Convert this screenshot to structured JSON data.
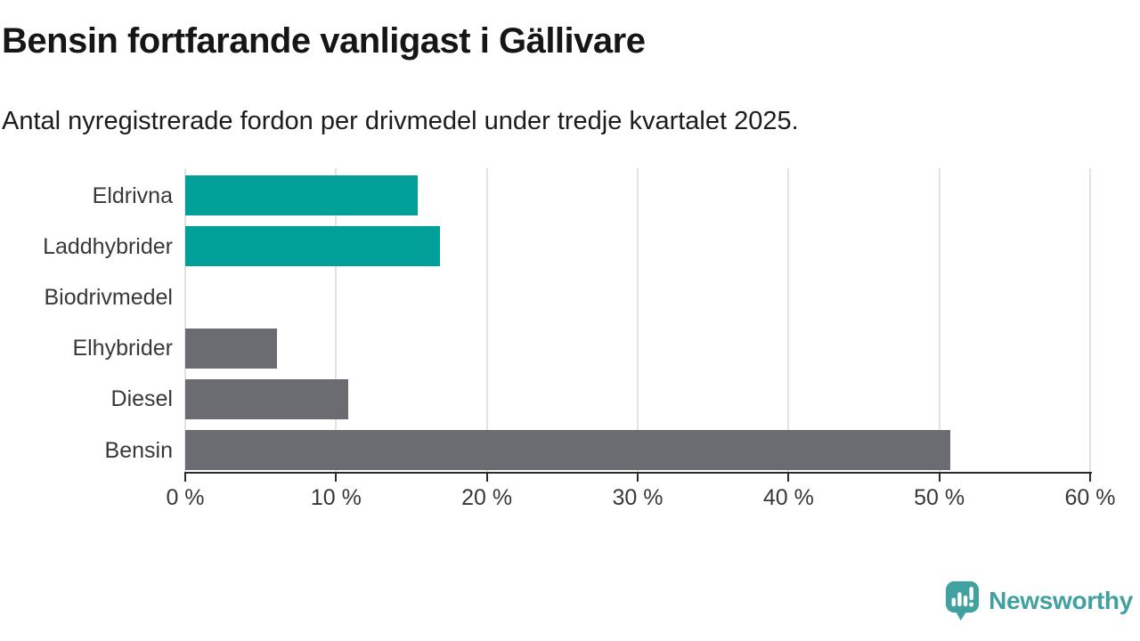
{
  "header": {
    "title": "Bensin fortfarande vanligast i Gällivare",
    "subtitle": "Antal nyregistrerade fordon per drivmedel under tredje kvartalet 2025."
  },
  "chart_data": {
    "type": "bar",
    "orientation": "horizontal",
    "title": "Bensin fortfarande vanligast i Gällivare",
    "subtitle": "Antal nyregistrerade fordon per drivmedel under tredje kvartalet 2025.",
    "categories": [
      "Eldrivna",
      "Laddhybrider",
      "Biodrivmedel",
      "Elhybrider",
      "Diesel",
      "Bensin"
    ],
    "values": [
      15.4,
      16.9,
      0,
      6.1,
      10.8,
      50.7
    ],
    "unit": "%",
    "bar_colors": [
      "#00a099",
      "#00a099",
      "#6b6b72",
      "#6b6b72",
      "#6b6b72",
      "#6b6b72"
    ],
    "xlabel": "",
    "ylabel": "",
    "xlim": [
      0,
      60
    ],
    "x_ticks": [
      0,
      10,
      20,
      30,
      40,
      50,
      60
    ],
    "x_tick_labels": [
      "0 %",
      "10 %",
      "20 %",
      "30 %",
      "40 %",
      "50 %",
      "60 %"
    ],
    "grid": "vertical-gridlines",
    "legend": "none"
  },
  "branding": {
    "logo_text": "Newsworthy",
    "logo_icon": "speech-bubble-bar-chart-icon",
    "logo_color": "#41a0a0"
  },
  "colors": {
    "teal_bar": "#00a099",
    "gray_bar": "#6b6b72",
    "gridline": "#e2e2e2",
    "axis": "#2b2b2b",
    "title_text": "#161616",
    "label_text": "#383838",
    "brand_teal": "#41a0a0"
  }
}
